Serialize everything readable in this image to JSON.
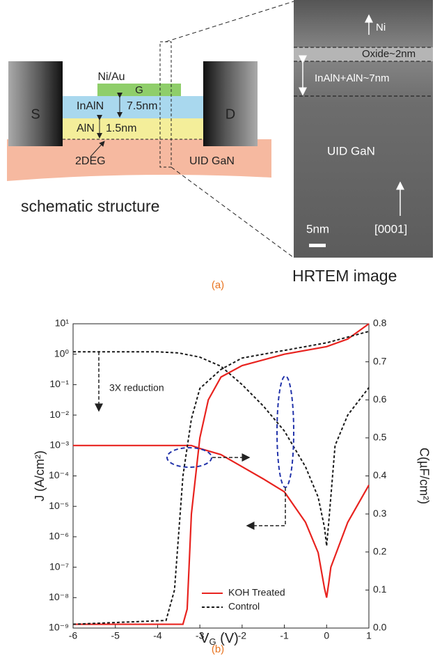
{
  "panel_a": {
    "schematic": {
      "gate_metal": "Ni/Au",
      "gate": "G",
      "source": "S",
      "drain": "D",
      "barrier": "InAlN",
      "barrier_thickness": "7.5nm",
      "spacer": "AlN",
      "spacer_thickness": "1.5nm",
      "channel": "2DEG",
      "substrate": "UID GaN",
      "caption": "schematic structure"
    },
    "hrtem": {
      "layers": [
        "Ni",
        "Oxide~2nm",
        "InAlN+AlN~7nm",
        "UID GaN"
      ],
      "scale_bar": "5nm",
      "direction": "[0001]",
      "caption": "HRTEM image"
    },
    "label": "(a)"
  },
  "chart_data": {
    "type": "line",
    "label": "(b)",
    "x_label": [
      "V",
      "G",
      " (V)"
    ],
    "y_label": "J (A/cm²)",
    "y2_label": "C(µF/cm²)",
    "xlim": [
      -6,
      1
    ],
    "xticks": [
      -6,
      -5,
      -4,
      -3,
      -2,
      -1,
      0,
      1
    ],
    "ylim": [
      1e-09,
      10
    ],
    "log_y": true,
    "yticks": [
      {
        "value": 10,
        "label": "10¹"
      },
      {
        "value": 1,
        "label": "10⁰"
      },
      {
        "value": 0.1,
        "label": "10⁻¹"
      },
      {
        "value": 0.01,
        "label": "10⁻²"
      },
      {
        "value": 0.001,
        "label": "10⁻³"
      },
      {
        "value": 0.0001,
        "label": "10⁻⁴"
      },
      {
        "value": 1e-05,
        "label": "10⁻⁵"
      },
      {
        "value": 1e-06,
        "label": "10⁻⁶"
      },
      {
        "value": 1e-07,
        "label": "10⁻⁷"
      },
      {
        "value": 1e-08,
        "label": "10⁻⁸"
      },
      {
        "value": 1e-09,
        "label": "10⁻⁹"
      }
    ],
    "y2lim": [
      0,
      0.8
    ],
    "y2ticks": [
      {
        "value": 0,
        "label": "0.0"
      },
      0.1,
      0.2,
      0.3,
      0.4,
      0.5,
      0.6,
      0.7,
      0.8
    ],
    "annotations": [
      "3X reduction"
    ],
    "legend": "lower right",
    "series": [
      {
        "name": "KOH Treated",
        "color": "#e8231f",
        "dash": false,
        "axis": "y",
        "x": [
          -6,
          -4,
          -3.2,
          -3,
          -2.5,
          -2,
          -1.5,
          -1,
          -0.5,
          -0.2,
          -0.05,
          0,
          0.05,
          0.1,
          0.5,
          1
        ],
        "values": [
          0.001,
          0.001,
          0.001,
          0.0008,
          0.0005,
          0.0002,
          8e-05,
          3e-05,
          3e-06,
          3e-07,
          2e-08,
          1e-08,
          3e-08,
          1e-07,
          3e-06,
          5e-05
        ]
      },
      {
        "name": "Control",
        "color": "#1a1a1a",
        "dash": true,
        "axis": "y",
        "x": [
          -6,
          -4,
          -3.5,
          -3,
          -2.5,
          -2,
          -1.5,
          -1,
          -0.5,
          -0.2,
          -0.05,
          0,
          0.05,
          0.2,
          0.5,
          1
        ],
        "values": [
          1.2,
          1.2,
          1.1,
          0.8,
          0.4,
          0.1,
          0.02,
          0.003,
          0.0002,
          2e-05,
          2e-06,
          5e-07,
          3e-06,
          0.001,
          0.01,
          0.08
        ]
      },
      {
        "color": "#e8231f",
        "dash": false,
        "axis": "y2",
        "x": [
          -6,
          -3.4,
          -3.3,
          -3.2,
          -3,
          -2.8,
          -2.5,
          -2,
          -1,
          0,
          0.5,
          1
        ],
        "values": [
          0.01,
          0.01,
          0.05,
          0.3,
          0.5,
          0.6,
          0.66,
          0.69,
          0.72,
          0.74,
          0.76,
          0.8
        ]
      },
      {
        "color": "#1a1a1a",
        "dash": true,
        "axis": "y2",
        "x": [
          -6,
          -3.8,
          -3.6,
          -3.5,
          -3.4,
          -3.2,
          -3,
          -2.5,
          -2,
          -1,
          0,
          1
        ],
        "values": [
          0.01,
          0.02,
          0.1,
          0.25,
          0.4,
          0.55,
          0.63,
          0.68,
          0.71,
          0.73,
          0.75,
          0.78
        ]
      }
    ]
  }
}
